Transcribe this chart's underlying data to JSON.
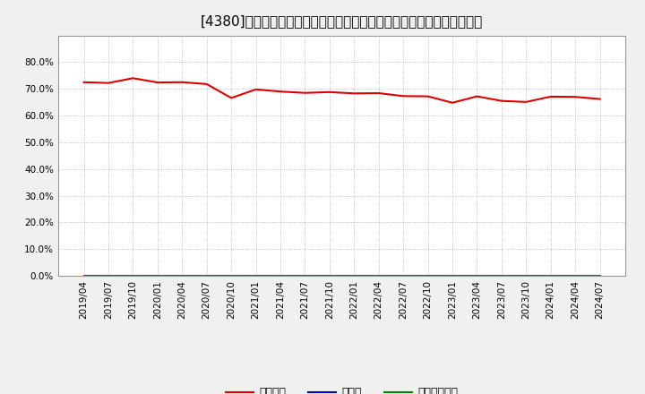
{
  "title": "[4380]　自己資本、のれん、繰延税金資産の総資産に対する比率の推移",
  "x_labels": [
    "2019/04",
    "2019/07",
    "2019/10",
    "2020/01",
    "2020/04",
    "2020/07",
    "2020/10",
    "2021/01",
    "2021/04",
    "2021/07",
    "2021/10",
    "2022/01",
    "2022/04",
    "2022/07",
    "2022/10",
    "2023/01",
    "2023/04",
    "2023/07",
    "2023/10",
    "2024/01",
    "2024/04",
    "2024/07"
  ],
  "jiko_shihon": [
    0.725,
    0.722,
    0.74,
    0.724,
    0.725,
    0.718,
    0.666,
    0.698,
    0.69,
    0.685,
    0.688,
    0.683,
    0.684,
    0.673,
    0.672,
    0.648,
    0.672,
    0.655,
    0.651,
    0.671,
    0.67,
    0.662
  ],
  "noren": [
    0.0,
    0.0,
    0.0,
    0.0,
    0.0,
    0.0,
    0.0,
    0.0,
    0.0,
    0.0,
    0.0,
    0.0,
    0.0,
    0.0,
    0.0,
    0.0,
    0.0,
    0.0,
    0.0,
    0.0,
    0.0,
    0.0
  ],
  "kurinobe": [
    0.0,
    0.0,
    0.0,
    0.0,
    0.0,
    0.0,
    0.0,
    0.0,
    0.0,
    0.0,
    0.0,
    0.0,
    0.0,
    0.0,
    0.0,
    0.0,
    0.0,
    0.0,
    0.0,
    0.0,
    0.0,
    0.0
  ],
  "jiko_color": "#dd0000",
  "noren_color": "#0000cc",
  "kurinobe_color": "#008800",
  "bg_color": "#f0f0f0",
  "plot_bg_color": "#ffffff",
  "grid_color": "#999999",
  "ylim": [
    0.0,
    0.9
  ],
  "yticks": [
    0.0,
    0.1,
    0.2,
    0.3,
    0.4,
    0.5,
    0.6,
    0.7,
    0.8
  ],
  "legend_labels": [
    "自己資本",
    "のれん",
    "繰延税金資産"
  ],
  "title_fontsize": 11,
  "tick_fontsize": 7.5,
  "legend_fontsize": 9
}
